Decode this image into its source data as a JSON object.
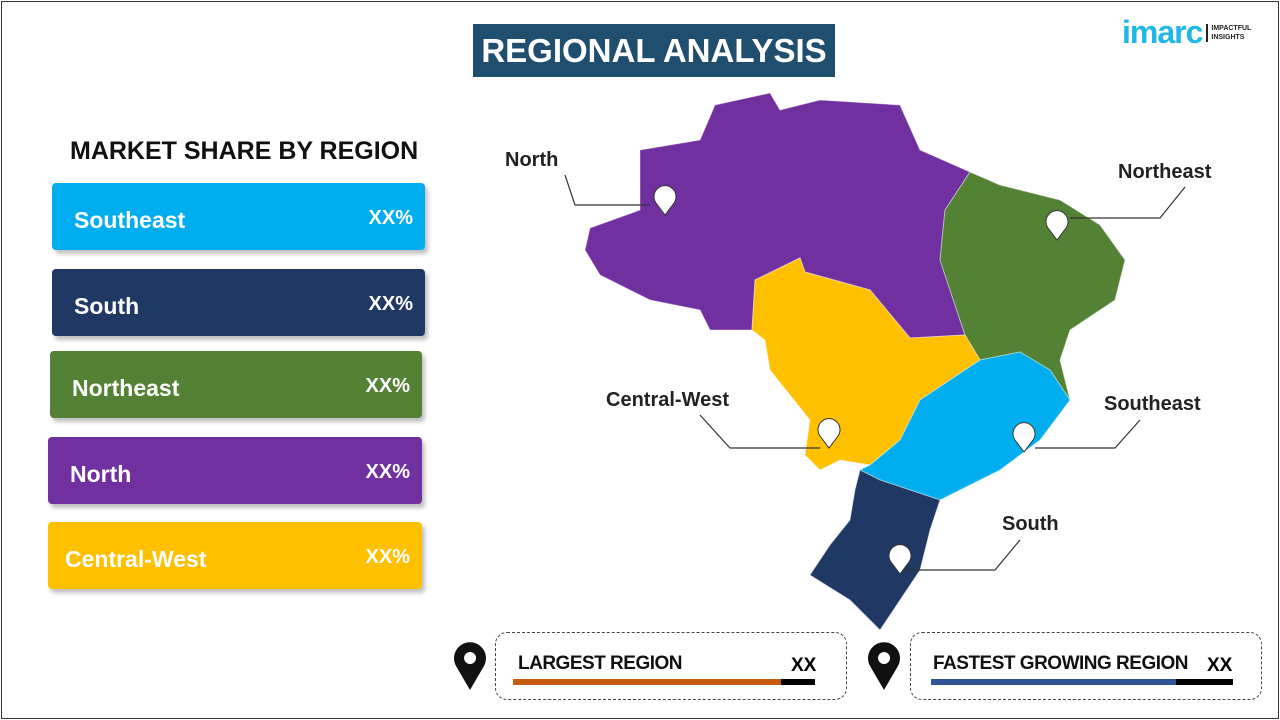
{
  "title": "REGIONAL ANALYSIS",
  "logo": {
    "brand": "imarc",
    "tagline1": "IMPACTFUL",
    "tagline2": "INSIGHTS"
  },
  "market_share": {
    "heading": "MARKET SHARE BY REGION",
    "items": [
      {
        "label": "Southeast",
        "value": "XX%",
        "color": "#00aeef"
      },
      {
        "label": "South",
        "value": "XX%",
        "color": "#1f3864"
      },
      {
        "label": "Northeast",
        "value": "XX%",
        "color": "#548235"
      },
      {
        "label": "North",
        "value": "XX%",
        "color": "#7030a0"
      },
      {
        "label": "Central-West",
        "value": "XX%",
        "color": "#ffc000"
      }
    ]
  },
  "map_labels": {
    "north": "North",
    "northeast": "Northeast",
    "central_west": "Central-West",
    "southeast": "Southeast",
    "south": "South"
  },
  "stats": {
    "largest": {
      "label": "LARGEST REGION",
      "value": "XX",
      "color": "#c55a11"
    },
    "fastest": {
      "label": "FASTEST GROWING REGION",
      "value": "XX",
      "color": "#2f5597"
    }
  }
}
